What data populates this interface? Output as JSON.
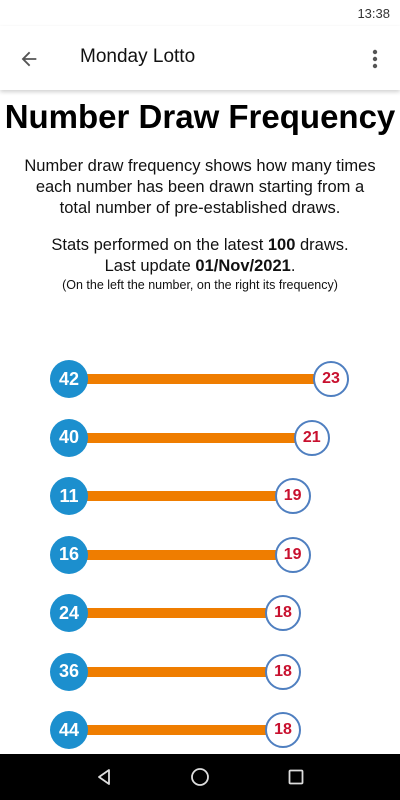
{
  "status_bar": {
    "time": "13:38"
  },
  "app_bar": {
    "title": "Monday Lotto"
  },
  "page": {
    "title": "Number Draw Frequency",
    "description": "Number draw frequency shows how many times each number has been drawn starting from a total number of pre-established draws.",
    "stats_prefix": "Stats performed on the latest ",
    "stats_count": "100",
    "stats_suffix": " draws.",
    "update_prefix": "Last update ",
    "update_date": "01/Nov/2021",
    "update_suffix": ".",
    "hint": "(On the left the number, on the right its frequency)"
  },
  "frequencies": [
    {
      "number": "42",
      "frequency": 23
    },
    {
      "number": "40",
      "frequency": 21
    },
    {
      "number": "11",
      "frequency": 19
    },
    {
      "number": "16",
      "frequency": 19
    },
    {
      "number": "24",
      "frequency": 18
    },
    {
      "number": "36",
      "frequency": 18
    },
    {
      "number": "44",
      "frequency": 18
    }
  ],
  "colors": {
    "number_ball": "#1c8fce",
    "bar": "#ef7d00",
    "frequency_text": "#c8102e",
    "frequency_border": "#4f7fc0"
  },
  "icons": {
    "back": "arrow-left-icon",
    "menu": "more-vertical-icon",
    "nav_back": "triangle-back-icon",
    "nav_home": "circle-home-icon",
    "nav_recents": "square-recents-icon"
  }
}
